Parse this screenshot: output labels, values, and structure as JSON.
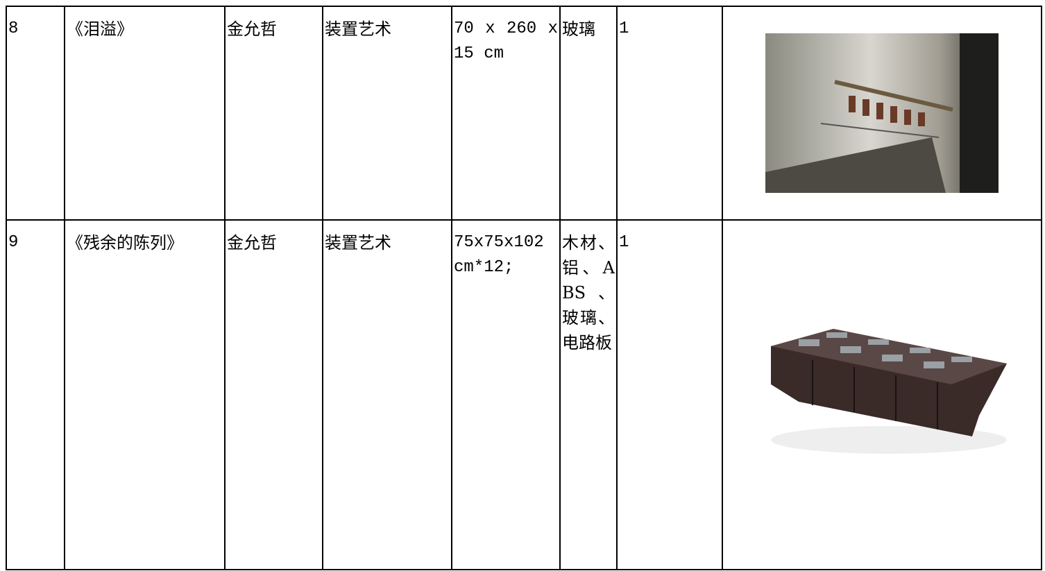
{
  "table": {
    "rows": [
      [
        "8",
        "《泪溢》",
        "金允哲",
        "装置艺术",
        "70 x 260 x 15 cm",
        "玻璃",
        "1"
      ],
      [
        "9",
        "《残余的陈列》",
        "金允哲",
        "装置艺术",
        "75x75x102 cm*12;",
        "木材、铝、ABS、玻璃、电路板",
        "1"
      ]
    ]
  }
}
